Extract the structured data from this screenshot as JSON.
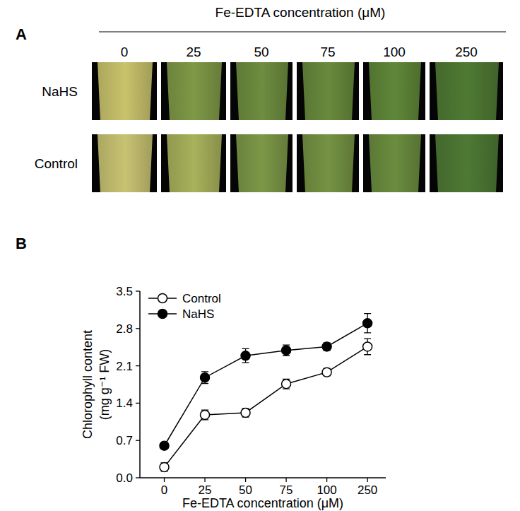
{
  "panel_a": {
    "panel_label": "A",
    "header": "Fe-EDTA concentration (μM)",
    "columns": [
      "0",
      "25",
      "50",
      "75",
      "100",
      "250"
    ],
    "rows": [
      {
        "label": "NaHS",
        "colors": [
          "#c9c36c",
          "#7e9946",
          "#6e8d3f",
          "#688a3c",
          "#5f8738",
          "#4f7a33"
        ]
      },
      {
        "label": "Control",
        "colors": [
          "#c8c372",
          "#a8b25b",
          "#7c9847",
          "#759343",
          "#6a8d3e",
          "#4e7934"
        ]
      }
    ]
  },
  "chart_data": {
    "type": "line",
    "panel_label": "B",
    "x_label": "Fe-EDTA concentration (μM)",
    "y_label": [
      "Chlorophyll content",
      "(mg g⁻¹ FW)"
    ],
    "categories": [
      "0",
      "25",
      "50",
      "75",
      "100",
      "250"
    ],
    "ylim": [
      0,
      3.5
    ],
    "yticks": [
      {
        "value": 0,
        "label": "0.0"
      },
      0.7,
      1.4,
      2.1,
      2.8,
      3.5
    ],
    "legend": "upper left",
    "series": [
      {
        "name": "Control",
        "color": "#000000",
        "marker": "circle-open",
        "line_style": "solid",
        "values": [
          0.2,
          1.18,
          1.22,
          1.76,
          1.98,
          2.46
        ],
        "errors": [
          0.08,
          0.09,
          0.08,
          0.09,
          0.07,
          0.15
        ]
      },
      {
        "name": "NaHS",
        "color": "#000000",
        "marker": "circle-filled",
        "line_style": "solid",
        "values": [
          0.6,
          1.88,
          2.29,
          2.39,
          2.46,
          2.9
        ],
        "errors": [
          0.05,
          0.11,
          0.13,
          0.1,
          0.07,
          0.18
        ]
      }
    ]
  }
}
